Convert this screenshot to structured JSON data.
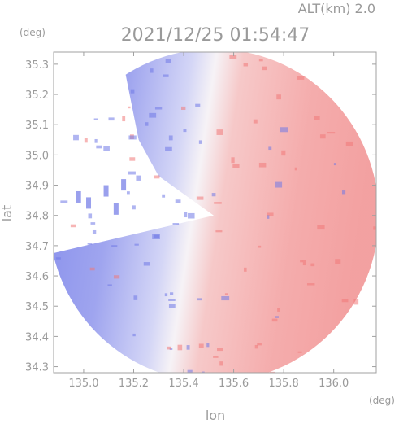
{
  "chart_data": {
    "type": "heatmap",
    "title": "2021/12/25 01:54:47",
    "subtitle": "ALT(km) 2.0",
    "xlabel": "lon",
    "ylabel": "lat",
    "x_unit": "(deg)",
    "y_unit": "(deg)",
    "xlim": [
      134.88,
      136.17
    ],
    "ylim": [
      34.28,
      35.34
    ],
    "x_ticks": [
      135.0,
      135.2,
      135.4,
      135.6,
      135.8,
      136.0
    ],
    "x_tick_labels": [
      "135.0",
      "135.2",
      "135.4",
      "135.6",
      "135.8",
      "136.0"
    ],
    "y_ticks": [
      34.3,
      34.4,
      34.5,
      34.6,
      34.7,
      34.8,
      34.9,
      35.0,
      35.1,
      35.2,
      35.3
    ],
    "y_tick_labels": [
      "34.3",
      "34.4",
      "34.5",
      "34.6",
      "34.7",
      "34.8",
      "34.9",
      "35.0",
      "35.1",
      "35.2",
      "35.3"
    ],
    "grid": false,
    "colors": {
      "approaching": "#6f78e6",
      "receding": "#f07878",
      "neutral": "#ffffff",
      "axis": "#a0a0a0"
    },
    "radar_center": [
      135.52,
      34.8
    ],
    "radar_radius_lon": 0.66,
    "radar_radius_lat": 0.55
  }
}
